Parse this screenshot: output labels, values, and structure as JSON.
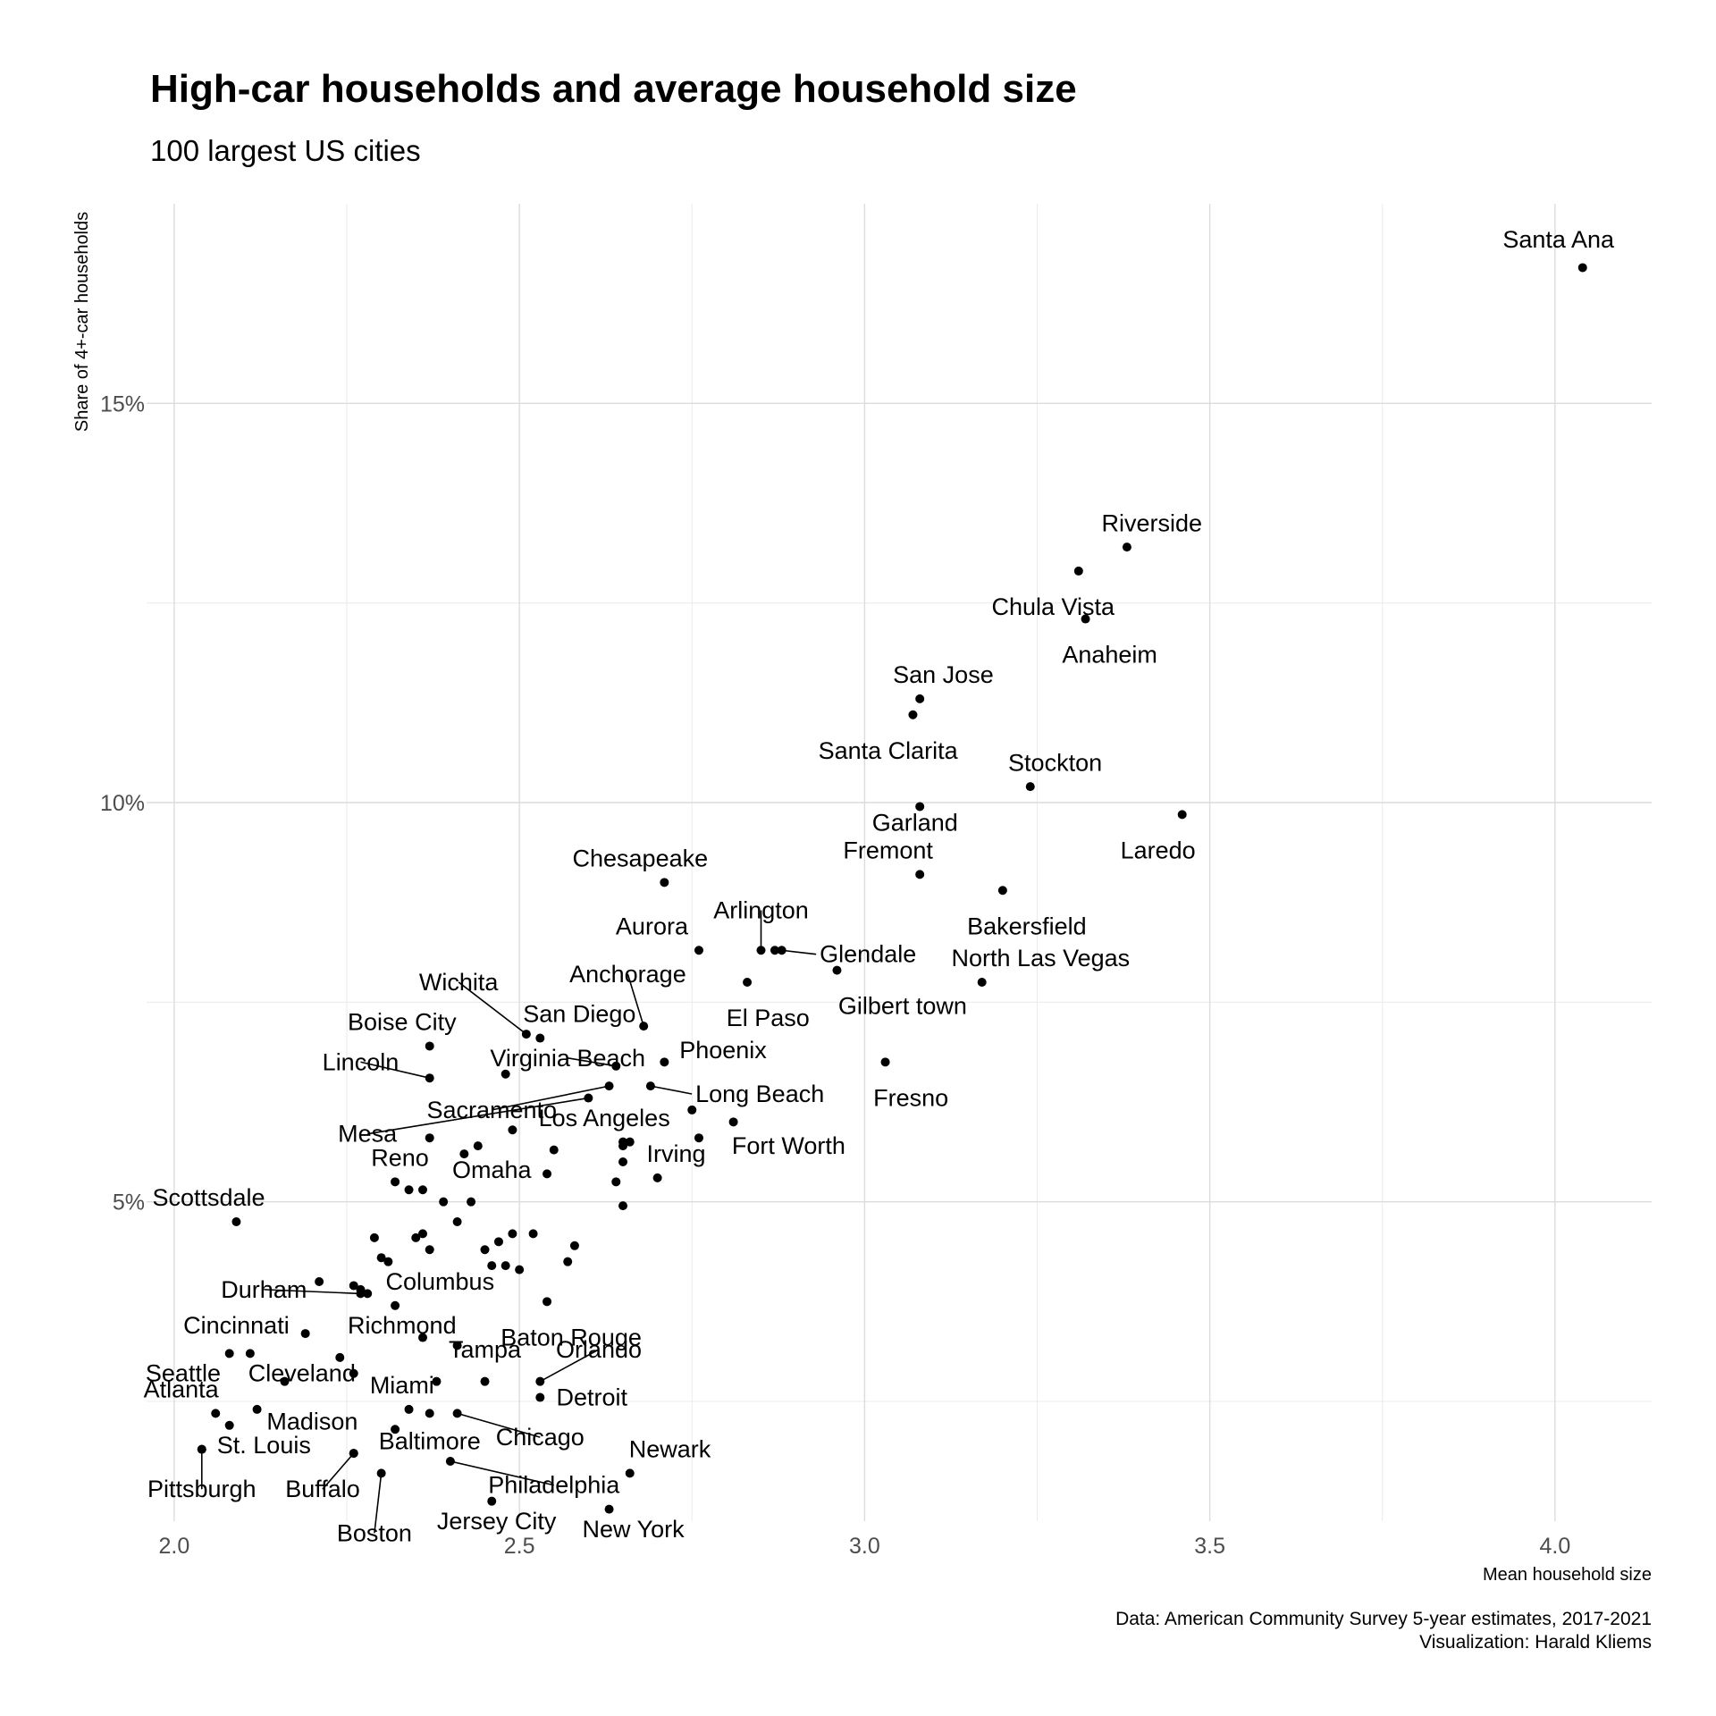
{
  "chart_data": {
    "type": "scatter",
    "title": "High-car households and average household size",
    "subtitle": "100 largest US cities",
    "xlabel": "Mean household size",
    "ylabel": "Share of 4+-car households",
    "caption": [
      "Data: American Community Survey 5-year estimates, 2017-2021",
      "Visualization: Harald Kliems"
    ],
    "xlim": [
      1.96,
      4.14
    ],
    "ylim": [
      1.0,
      17.5
    ],
    "x_ticks": [
      2.0,
      2.5,
      3.0,
      3.5,
      4.0
    ],
    "x_tick_labels": [
      "2.0",
      "2.5",
      "3.0",
      "3.5",
      "4.0"
    ],
    "y_ticks": [
      5,
      10,
      15
    ],
    "y_tick_labels": [
      "5%",
      "10%",
      "15%"
    ],
    "grid": true,
    "point_color": "#000000",
    "points": [
      {
        "name": "Santa Ana",
        "x": 4.04,
        "y": 16.7,
        "label": {
          "dx": -0.035,
          "dy": 0.25,
          "anchor": "middle"
        }
      },
      {
        "name": "Riverside",
        "x": 3.38,
        "y": 13.2,
        "label": {
          "dx": 0.036,
          "dy": 0.2,
          "anchor": "middle"
        }
      },
      {
        "name": "Chula Vista",
        "x": 3.31,
        "y": 12.9,
        "label": {
          "dx": -0.037,
          "dy": -0.55,
          "anchor": "middle"
        }
      },
      {
        "name": "Anaheim",
        "x": 3.32,
        "y": 12.3,
        "label": {
          "dx": 0.035,
          "dy": -0.55,
          "anchor": "middle"
        }
      },
      {
        "name": "San Jose",
        "x": 3.08,
        "y": 11.3,
        "label": {
          "dx": 0.034,
          "dy": 0.2,
          "anchor": "middle"
        }
      },
      {
        "name": "Santa Clarita",
        "x": 3.07,
        "y": 11.1,
        "label": {
          "dx": -0.036,
          "dy": -0.55,
          "anchor": "middle"
        }
      },
      {
        "name": "Stockton",
        "x": 3.24,
        "y": 10.2,
        "label": {
          "dx": 0.036,
          "dy": 0.2,
          "anchor": "middle"
        }
      },
      {
        "name": "Garland",
        "x": 3.08,
        "y": 9.95,
        "label": {
          "dx": -0.007,
          "dy": -0.3,
          "anchor": "middle"
        }
      },
      {
        "name": "Laredo",
        "x": 3.46,
        "y": 9.85,
        "label": {
          "dx": -0.035,
          "dy": -0.55,
          "anchor": "middle"
        }
      },
      {
        "name": "Fremont",
        "x": 3.08,
        "y": 9.1,
        "label": {
          "dx": -0.046,
          "dy": 0.2,
          "anchor": "middle"
        }
      },
      {
        "name": "Chesapeake",
        "x": 2.71,
        "y": 9.0,
        "label": {
          "dx": -0.035,
          "dy": 0.2,
          "anchor": "middle"
        }
      },
      {
        "name": "Bakersfield",
        "x": 3.2,
        "y": 8.9,
        "label": {
          "dx": 0.035,
          "dy": -0.55,
          "anchor": "middle"
        }
      },
      {
        "name": "Arlington",
        "x": 2.85,
        "y": 8.15,
        "label": {
          "dx": 0.0,
          "dy": 0.4,
          "anchor": "middle",
          "leader": true
        }
      },
      {
        "name": "Glendale",
        "x": 2.88,
        "y": 8.15,
        "label": {
          "dx": 0.055,
          "dy": -0.15,
          "anchor": "start",
          "leader": true
        }
      },
      {
        "name": "Aurora",
        "x": 2.76,
        "y": 8.15,
        "label": {
          "dx": -0.068,
          "dy": 0.2,
          "anchor": "middle"
        }
      },
      {
        "name": "North Las Vegas",
        "x": 3.17,
        "y": 7.75,
        "label": {
          "dx": 0.085,
          "dy": 0.2,
          "anchor": "middle"
        }
      },
      {
        "name": "Anchorage",
        "x": 2.68,
        "y": 7.2,
        "label": {
          "dx": -0.023,
          "dy": 0.55,
          "anchor": "middle",
          "leader": true
        }
      },
      {
        "name": "El Paso",
        "x": 2.83,
        "y": 7.75,
        "label": {
          "dx": 0.03,
          "dy": -0.55,
          "anchor": "middle"
        }
      },
      {
        "name": "Gilbert town",
        "x": 2.96,
        "y": 7.9,
        "label": {
          "dx": 0.095,
          "dy": -0.55,
          "anchor": "middle"
        }
      },
      {
        "name": "Wichita",
        "x": 2.51,
        "y": 7.1,
        "label": {
          "dx": -0.098,
          "dy": 0.55,
          "anchor": "middle",
          "leader": true
        }
      },
      {
        "name": "San Diego",
        "x": 2.53,
        "y": 7.05,
        "label": {
          "dx": 0.057,
          "dy": 0.2,
          "anchor": "middle"
        }
      },
      {
        "name": "Boise City",
        "x": 2.37,
        "y": 6.95,
        "label": {
          "dx": -0.04,
          "dy": 0.2,
          "anchor": "middle"
        }
      },
      {
        "name": "Phoenix",
        "x": 2.71,
        "y": 6.75,
        "label": {
          "dx": 0.085,
          "dy": 0.05,
          "anchor": "middle"
        }
      },
      {
        "name": "Fresno",
        "x": 3.03,
        "y": 6.75,
        "label": {
          "dx": 0.037,
          "dy": -0.55,
          "anchor": "middle"
        }
      },
      {
        "name": "Virginia Beach",
        "x": 2.64,
        "y": 6.7,
        "label": {
          "dx": -0.07,
          "dy": 0.0,
          "anchor": "middle",
          "leader": true
        }
      },
      {
        "name": "Lincoln",
        "x": 2.37,
        "y": 6.55,
        "label": {
          "dx": -0.1,
          "dy": 0.1,
          "anchor": "middle",
          "leader": true
        }
      },
      {
        "name": "Long Beach",
        "x": 2.69,
        "y": 6.45,
        "label": {
          "dx": 0.065,
          "dy": -0.2,
          "anchor": "start",
          "leader": true
        }
      },
      {
        "name": "Sacramento",
        "x": 2.63,
        "y": 6.45,
        "label": {
          "dx": -0.17,
          "dy": -0.4,
          "anchor": "middle",
          "leader": true
        }
      },
      {
        "name": "Mesa",
        "x": 2.6,
        "y": 6.3,
        "label": {
          "dx": -0.32,
          "dy": -0.55,
          "anchor": "middle",
          "leader": true
        }
      },
      {
        "name": "Los Angeles",
        "x": 2.65,
        "y": 5.75,
        "label": {
          "dx": -0.027,
          "dy": 0.2,
          "anchor": "middle"
        }
      },
      {
        "name": "Fort Worth",
        "x": 2.76,
        "y": 5.8,
        "label": {
          "dx": 0.13,
          "dy": -0.2,
          "anchor": "middle"
        }
      },
      {
        "name": "Irving",
        "x": 2.7,
        "y": 5.3,
        "label": {
          "dx": 0.027,
          "dy": 0.2,
          "anchor": "middle"
        }
      },
      {
        "name": "Reno",
        "x": 2.32,
        "y": 5.25,
        "label": {
          "dx": 0.007,
          "dy": 0.2,
          "anchor": "middle"
        }
      },
      {
        "name": "Omaha",
        "x": 2.43,
        "y": 5.0,
        "label": {
          "dx": 0.03,
          "dy": 0.3,
          "anchor": "middle"
        }
      },
      {
        "name": "Scottsdale",
        "x": 2.09,
        "y": 4.75,
        "label": {
          "dx": -0.04,
          "dy": 0.2,
          "anchor": "middle"
        }
      },
      {
        "name": "Columbus",
        "x": 2.32,
        "y": 3.7,
        "label": {
          "dx": 0.065,
          "dy": 0.2,
          "anchor": "middle"
        }
      },
      {
        "name": "Durham",
        "x": 2.27,
        "y": 3.85,
        "label": {
          "dx": -0.14,
          "dy": -0.05,
          "anchor": "middle",
          "leader": true
        }
      },
      {
        "name": "Baton Rouge",
        "x": 2.54,
        "y": 3.75,
        "label": {
          "dx": 0.035,
          "dy": -0.55,
          "anchor": "middle"
        }
      },
      {
        "name": "Cincinnati",
        "x": 2.19,
        "y": 3.35,
        "label": {
          "dx": -0.1,
          "dy": 0.0,
          "anchor": "middle"
        }
      },
      {
        "name": "Richmond",
        "x": 2.36,
        "y": 3.3,
        "label": {
          "dx": -0.03,
          "dy": 0.05,
          "anchor": "middle"
        }
      },
      {
        "name": "Seattle",
        "x": 2.08,
        "y": 3.1,
        "label": {
          "dx": -0.067,
          "dy": -0.35,
          "anchor": "middle"
        }
      },
      {
        "name": "Cleveland",
        "x": 2.26,
        "y": 2.85,
        "label": {
          "dx": -0.075,
          "dy": -0.1,
          "anchor": "middle"
        }
      },
      {
        "name": "Tampa",
        "x": 2.45,
        "y": 2.75,
        "label": {
          "dx": 0.0,
          "dy": 0.3,
          "anchor": "middle"
        }
      },
      {
        "name": "Orlando",
        "x": 2.53,
        "y": 2.75,
        "label": {
          "dx": 0.085,
          "dy": 0.3,
          "anchor": "middle",
          "leader": true
        }
      },
      {
        "name": "Detroit",
        "x": 2.53,
        "y": 2.55,
        "label": {
          "dx": 0.075,
          "dy": -0.1,
          "anchor": "middle"
        }
      },
      {
        "name": "Miami",
        "x": 2.38,
        "y": 2.75,
        "label": {
          "dx": -0.05,
          "dy": -0.15,
          "anchor": "middle"
        }
      },
      {
        "name": "Atlanta",
        "x": 2.06,
        "y": 2.35,
        "label": {
          "dx": -0.05,
          "dy": 0.2,
          "anchor": "middle"
        }
      },
      {
        "name": "Madison",
        "x": 2.12,
        "y": 2.4,
        "label": {
          "dx": 0.08,
          "dy": -0.25,
          "anchor": "middle"
        }
      },
      {
        "name": "Chicago",
        "x": 2.41,
        "y": 2.35,
        "label": {
          "dx": 0.12,
          "dy": -0.4,
          "anchor": "middle",
          "leader": true
        }
      },
      {
        "name": "St. Louis",
        "x": 2.04,
        "y": 1.9,
        "label": {
          "dx": 0.09,
          "dy": -0.05,
          "anchor": "middle"
        }
      },
      {
        "name": "Pittsburgh",
        "x": 2.04,
        "y": 1.9,
        "label": {
          "dx": 0.0,
          "dy": -0.6,
          "anchor": "middle",
          "leader": true
        }
      },
      {
        "name": "Baltimore",
        "x": 2.26,
        "y": 1.85,
        "label": {
          "dx": 0.11,
          "dy": 0.05,
          "anchor": "middle"
        }
      },
      {
        "name": "Buffalo",
        "x": 2.26,
        "y": 1.85,
        "label": {
          "dx": -0.045,
          "dy": -0.55,
          "anchor": "middle",
          "leader": true
        }
      },
      {
        "name": "Boston",
        "x": 2.3,
        "y": 1.6,
        "label": {
          "dx": -0.01,
          "dy": -0.85,
          "anchor": "middle",
          "leader": true
        }
      },
      {
        "name": "Philadelphia",
        "x": 2.4,
        "y": 1.75,
        "label": {
          "dx": 0.15,
          "dy": -0.4,
          "anchor": "middle",
          "leader": true
        }
      },
      {
        "name": "Newark",
        "x": 2.66,
        "y": 1.6,
        "label": {
          "dx": 0.058,
          "dy": 0.2,
          "anchor": "middle"
        }
      },
      {
        "name": "Jersey City",
        "x": 2.46,
        "y": 1.25,
        "label": {
          "dx": 0.007,
          "dy": -0.35,
          "anchor": "middle"
        }
      },
      {
        "name": "New York",
        "x": 2.63,
        "y": 1.15,
        "label": {
          "dx": 0.035,
          "dy": -0.35,
          "anchor": "middle"
        }
      },
      {
        "name": "",
        "x": 2.87,
        "y": 8.15
      },
      {
        "name": "",
        "x": 2.48,
        "y": 6.6
      },
      {
        "name": "",
        "x": 2.37,
        "y": 5.8
      },
      {
        "name": "",
        "x": 2.42,
        "y": 5.6
      },
      {
        "name": "",
        "x": 2.44,
        "y": 5.7
      },
      {
        "name": "",
        "x": 2.49,
        "y": 5.9
      },
      {
        "name": "",
        "x": 2.55,
        "y": 5.65
      },
      {
        "name": "",
        "x": 2.65,
        "y": 5.7
      },
      {
        "name": "",
        "x": 2.66,
        "y": 5.75
      },
      {
        "name": "",
        "x": 2.65,
        "y": 5.5
      },
      {
        "name": "",
        "x": 2.64,
        "y": 5.25
      },
      {
        "name": "",
        "x": 2.65,
        "y": 4.95
      },
      {
        "name": "",
        "x": 2.54,
        "y": 5.35
      },
      {
        "name": "",
        "x": 2.75,
        "y": 6.15
      },
      {
        "name": "",
        "x": 2.81,
        "y": 6.0
      },
      {
        "name": "",
        "x": 2.34,
        "y": 5.15
      },
      {
        "name": "",
        "x": 2.36,
        "y": 5.15
      },
      {
        "name": "",
        "x": 2.39,
        "y": 5.0
      },
      {
        "name": "",
        "x": 2.41,
        "y": 4.75
      },
      {
        "name": "",
        "x": 2.29,
        "y": 4.55
      },
      {
        "name": "",
        "x": 2.35,
        "y": 4.55
      },
      {
        "name": "",
        "x": 2.36,
        "y": 4.6
      },
      {
        "name": "",
        "x": 2.37,
        "y": 4.4
      },
      {
        "name": "",
        "x": 2.3,
        "y": 4.3
      },
      {
        "name": "",
        "x": 2.31,
        "y": 4.25
      },
      {
        "name": "",
        "x": 2.45,
        "y": 4.4
      },
      {
        "name": "",
        "x": 2.47,
        "y": 4.5
      },
      {
        "name": "",
        "x": 2.49,
        "y": 4.6
      },
      {
        "name": "",
        "x": 2.52,
        "y": 4.6
      },
      {
        "name": "",
        "x": 2.46,
        "y": 4.2
      },
      {
        "name": "",
        "x": 2.48,
        "y": 4.2
      },
      {
        "name": "",
        "x": 2.5,
        "y": 4.15
      },
      {
        "name": "",
        "x": 2.58,
        "y": 4.45
      },
      {
        "name": "",
        "x": 2.57,
        "y": 4.25
      },
      {
        "name": "",
        "x": 2.21,
        "y": 4.0
      },
      {
        "name": "",
        "x": 2.26,
        "y": 3.95
      },
      {
        "name": "",
        "x": 2.27,
        "y": 3.9
      },
      {
        "name": "",
        "x": 2.28,
        "y": 3.85
      },
      {
        "name": "",
        "x": 2.41,
        "y": 3.2
      },
      {
        "name": "",
        "x": 2.11,
        "y": 3.1
      },
      {
        "name": "",
        "x": 2.24,
        "y": 3.05
      },
      {
        "name": "",
        "x": 2.16,
        "y": 2.75
      },
      {
        "name": "",
        "x": 2.08,
        "y": 2.2
      },
      {
        "name": "",
        "x": 2.32,
        "y": 2.15
      },
      {
        "name": "",
        "x": 2.34,
        "y": 2.4
      },
      {
        "name": "",
        "x": 2.37,
        "y": 2.35
      }
    ]
  }
}
